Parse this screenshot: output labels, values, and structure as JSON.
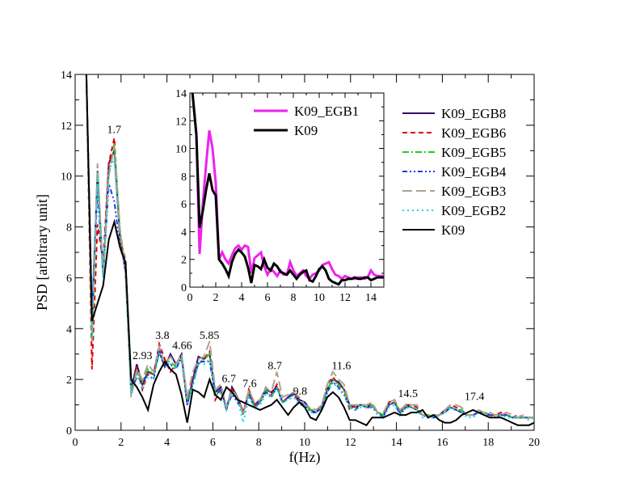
{
  "chart_data": [
    {
      "id": "main",
      "type": "line",
      "title": "",
      "xlabel": "f(Hz)",
      "ylabel": "PSD [arbitrary unit]",
      "xlim": [
        0,
        20
      ],
      "ylim": [
        0,
        14
      ],
      "xticks": [
        0,
        2,
        4,
        6,
        8,
        10,
        12,
        14,
        16,
        18,
        20
      ],
      "yticks": [
        0,
        2,
        4,
        6,
        8,
        10,
        12,
        14
      ],
      "legend_position": "right",
      "x": [
        0.488,
        0.732,
        0.977,
        1.221,
        1.465,
        1.709,
        1.953,
        2.197,
        2.441,
        2.686,
        2.93,
        3.174,
        3.418,
        3.662,
        3.906,
        4.15,
        4.395,
        4.639,
        4.883,
        5.127,
        5.371,
        5.615,
        5.859,
        6.104,
        6.348,
        6.592,
        6.836,
        7.08,
        7.324,
        7.568,
        7.813,
        8.057,
        8.301,
        8.545,
        8.789,
        9.033,
        9.277,
        9.521,
        9.766,
        10.01,
        10.254,
        10.498,
        10.742,
        10.986,
        11.23,
        11.475,
        11.719,
        11.963,
        12.207,
        12.451,
        12.695,
        12.939,
        13.184,
        13.428,
        13.672,
        13.916,
        14.16,
        14.404,
        14.648,
        14.893,
        15.137,
        15.381,
        15.625,
        15.869,
        16.113,
        16.357,
        16.602,
        16.846,
        17.09,
        17.334,
        17.578,
        17.822,
        18.066,
        18.311,
        18.555,
        18.799,
        19.043,
        19.287,
        19.531,
        19.775,
        20.0
      ],
      "series": [
        {
          "name": "K09_EGB8",
          "color": "#3b0a6e",
          "dash": "solid",
          "values": [
            14,
            4.3,
            10.2,
            6.0,
            10.5,
            11.0,
            7.6,
            6.2,
            1.6,
            2.6,
            1.8,
            2.3,
            2.2,
            3.1,
            2.5,
            3.0,
            2.6,
            3.0,
            1.0,
            2.0,
            2.9,
            2.8,
            3.0,
            1.5,
            1.7,
            0.8,
            1.7,
            1.3,
            0.7,
            1.5,
            1.0,
            1.2,
            1.6,
            1.5,
            1.7,
            1.1,
            1.3,
            1.5,
            1.2,
            1.1,
            0.8,
            0.7,
            0.9,
            1.6,
            2.0,
            1.9,
            1.6,
            1.0,
            0.9,
            1.0,
            0.9,
            1.0,
            0.7,
            0.6,
            1.0,
            1.1,
            0.7,
            1.0,
            0.9,
            0.8,
            0.6,
            0.6,
            0.5,
            0.6,
            0.8,
            0.9,
            0.8,
            0.7,
            0.6,
            0.6,
            0.7,
            0.7,
            0.6,
            0.6,
            0.6,
            0.6,
            0.5,
            0.5,
            0.5,
            0.5,
            0.5
          ]
        },
        {
          "name": "K09_EGB6",
          "color": "#e00000",
          "dash": "6,4",
          "values": [
            14,
            2.4,
            8.1,
            6.6,
            10.5,
            11.5,
            7.5,
            6.7,
            1.5,
            2.5,
            1.6,
            2.3,
            2.2,
            3.4,
            2.8,
            2.3,
            2.6,
            2.9,
            1.1,
            2.0,
            2.6,
            2.8,
            3.1,
            1.2,
            1.6,
            0.9,
            1.6,
            1.2,
            0.7,
            1.6,
            1.0,
            1.2,
            1.5,
            1.4,
            1.8,
            1.1,
            1.3,
            1.4,
            1.1,
            1.0,
            0.8,
            0.8,
            0.9,
            1.8,
            2.1,
            1.8,
            1.6,
            0.8,
            1.0,
            1.0,
            1.0,
            1.0,
            0.7,
            0.6,
            1.1,
            1.2,
            0.7,
            1.0,
            1.0,
            0.9,
            0.6,
            0.6,
            0.5,
            0.6,
            0.8,
            1.0,
            0.9,
            0.8,
            0.6,
            0.6,
            0.7,
            0.7,
            0.6,
            0.6,
            0.7,
            0.6,
            0.5,
            0.6,
            0.5,
            0.5,
            0.5
          ]
        },
        {
          "name": "K09_EGB5",
          "color": "#22cc22",
          "dash": "8,3,2,3",
          "values": [
            14,
            3.5,
            10.0,
            6.3,
            10.0,
            11.3,
            7.9,
            6.4,
            1.5,
            2.3,
            1.9,
            2.4,
            2.2,
            3.0,
            2.7,
            2.7,
            2.5,
            2.8,
            1.2,
            1.8,
            2.6,
            2.8,
            3.0,
            1.4,
            1.5,
            0.9,
            1.5,
            1.2,
            0.6,
            1.5,
            0.9,
            1.1,
            1.6,
            1.3,
            1.7,
            1.1,
            1.2,
            1.5,
            1.1,
            1.0,
            0.8,
            0.8,
            0.8,
            1.6,
            2.0,
            1.8,
            1.6,
            0.9,
            0.9,
            1.0,
            0.9,
            1.0,
            0.7,
            0.6,
            1.0,
            1.1,
            0.7,
            1.0,
            0.9,
            0.8,
            0.6,
            0.6,
            0.5,
            0.6,
            0.7,
            0.9,
            0.8,
            0.8,
            0.6,
            0.6,
            0.7,
            0.7,
            0.6,
            0.6,
            0.6,
            0.6,
            0.5,
            0.5,
            0.5,
            0.5,
            0.5
          ]
        },
        {
          "name": "K09_EGB4",
          "color": "#1a3aee",
          "dash": "6,3,2,3,2,3",
          "values": [
            14,
            4.5,
            9.5,
            6.1,
            9.7,
            9.0,
            7.2,
            6.5,
            1.5,
            2.1,
            1.9,
            2.2,
            2.0,
            3.2,
            2.6,
            2.6,
            2.4,
            2.9,
            1.0,
            1.9,
            2.7,
            2.7,
            2.7,
            1.4,
            1.6,
            0.9,
            1.4,
            1.1,
            0.7,
            1.4,
            0.9,
            1.1,
            1.5,
            1.3,
            1.7,
            1.1,
            1.3,
            1.4,
            1.1,
            1.0,
            0.7,
            0.7,
            0.9,
            1.5,
            1.9,
            1.7,
            1.4,
            0.9,
            0.8,
            1.0,
            0.9,
            0.9,
            0.7,
            0.5,
            1.0,
            1.1,
            0.6,
            0.9,
            0.9,
            0.8,
            0.6,
            0.5,
            0.5,
            0.6,
            0.7,
            0.9,
            0.8,
            0.7,
            0.6,
            0.6,
            0.7,
            0.6,
            0.6,
            0.5,
            0.6,
            0.6,
            0.5,
            0.5,
            0.5,
            0.5,
            0.5
          ]
        },
        {
          "name": "K09_EGB3",
          "color": "#b0a090",
          "dash": "12,5",
          "values": [
            14,
            3.5,
            10.5,
            6.0,
            10.0,
            11.2,
            7.8,
            6.4,
            1.3,
            2.4,
            2.0,
            2.6,
            2.3,
            3.3,
            2.6,
            2.9,
            2.6,
            3.0,
            1.3,
            2.3,
            2.8,
            2.9,
            3.5,
            1.6,
            1.8,
            0.9,
            1.6,
            1.3,
            0.6,
            1.6,
            1.1,
            1.2,
            1.7,
            1.5,
            2.3,
            1.3,
            1.4,
            1.5,
            1.3,
            1.0,
            0.9,
            0.8,
            1.0,
            1.8,
            2.3,
            2.0,
            1.8,
            1.0,
            1.0,
            1.0,
            1.0,
            1.1,
            0.7,
            0.7,
            1.1,
            1.2,
            0.8,
            1.0,
            1.0,
            1.0,
            0.6,
            0.6,
            0.6,
            0.6,
            0.8,
            1.0,
            1.0,
            0.9,
            0.6,
            0.6,
            0.8,
            0.7,
            0.7,
            0.6,
            0.6,
            0.7,
            0.6,
            0.5,
            0.6,
            0.5,
            0.5
          ]
        },
        {
          "name": "K09_EGB2",
          "color": "#19d6e8",
          "dash": "2,4",
          "values": [
            14,
            3.6,
            10.1,
            6.0,
            10.2,
            10.7,
            7.3,
            6.3,
            1.4,
            2.2,
            1.6,
            2.1,
            2.0,
            3.1,
            2.5,
            2.6,
            2.4,
            2.8,
            1.0,
            1.7,
            2.7,
            2.6,
            2.8,
            1.4,
            1.5,
            0.8,
            1.5,
            1.2,
            0.3,
            1.3,
            0.9,
            1.0,
            1.4,
            1.3,
            1.7,
            1.1,
            1.2,
            1.3,
            1.0,
            1.0,
            0.7,
            0.7,
            0.9,
            1.5,
            1.9,
            1.6,
            1.4,
            0.9,
            0.8,
            0.9,
            0.9,
            0.9,
            0.6,
            0.5,
            0.9,
            1.0,
            0.6,
            0.9,
            0.9,
            0.8,
            0.5,
            0.5,
            0.5,
            0.6,
            0.7,
            0.9,
            0.8,
            0.7,
            0.5,
            0.5,
            0.7,
            0.6,
            0.5,
            0.5,
            0.6,
            0.5,
            0.5,
            0.5,
            0.5,
            0.4,
            0.5
          ]
        },
        {
          "name": "K09",
          "color": "#000000",
          "dash": "solid",
          "values": [
            14,
            4.3,
            5.0,
            5.7,
            7.5,
            8.2,
            7.2,
            6.6,
            2.0,
            1.7,
            1.3,
            0.8,
            1.8,
            2.3,
            2.7,
            2.4,
            2.2,
            1.4,
            0.3,
            1.6,
            1.5,
            1.3,
            2.0,
            1.4,
            1.2,
            1.7,
            1.5,
            1.2,
            1.1,
            1.0,
            0.9,
            0.8,
            0.9,
            1.0,
            1.2,
            0.9,
            0.6,
            0.9,
            1.1,
            0.9,
            0.5,
            0.4,
            0.8,
            1.3,
            1.5,
            1.3,
            0.9,
            0.4,
            0.4,
            0.3,
            0.2,
            0.5,
            0.5,
            0.5,
            0.6,
            0.7,
            0.6,
            0.6,
            0.7,
            0.7,
            0.8,
            0.5,
            0.6,
            0.4,
            0.3,
            0.3,
            0.4,
            0.6,
            0.7,
            0.8,
            0.7,
            0.6,
            0.5,
            0.5,
            0.5,
            0.4,
            0.3,
            0.2,
            0.2,
            0.2,
            0.3
          ]
        }
      ],
      "annotations": [
        {
          "text": "1.7",
          "x": 1.7,
          "y": 11.7
        },
        {
          "text": "2.93",
          "x": 2.93,
          "y": 2.8
        },
        {
          "text": "3.8",
          "x": 3.8,
          "y": 3.6
        },
        {
          "text": "4.66",
          "x": 4.66,
          "y": 3.2
        },
        {
          "text": "5.85",
          "x": 5.85,
          "y": 3.6
        },
        {
          "text": "6.7",
          "x": 6.7,
          "y": 1.9
        },
        {
          "text": "7.6",
          "x": 7.6,
          "y": 1.7
        },
        {
          "text": "8.7",
          "x": 8.7,
          "y": 2.4
        },
        {
          "text": "9.8",
          "x": 9.8,
          "y": 1.4
        },
        {
          "text": "11.6",
          "x": 11.6,
          "y": 2.4
        },
        {
          "text": "14.5",
          "x": 14.5,
          "y": 1.3
        },
        {
          "text": "17.4",
          "x": 17.4,
          "y": 1.2
        }
      ]
    },
    {
      "id": "inset",
      "type": "line",
      "title": "",
      "xlabel": "",
      "ylabel": "",
      "xlim": [
        0,
        15
      ],
      "ylim": [
        0,
        14
      ],
      "xticks": [
        0,
        2,
        4,
        6,
        8,
        10,
        12,
        14
      ],
      "yticks": [
        0,
        2,
        4,
        6,
        8,
        10,
        12,
        14
      ],
      "legend_position": "top-right",
      "x": [
        0.2,
        0.5,
        0.75,
        1.0,
        1.25,
        1.5,
        1.75,
        2.0,
        2.25,
        2.5,
        2.75,
        3.0,
        3.25,
        3.5,
        3.75,
        4.0,
        4.25,
        4.5,
        4.75,
        5.0,
        5.25,
        5.5,
        5.75,
        6.0,
        6.25,
        6.5,
        6.75,
        7.0,
        7.25,
        7.5,
        7.75,
        8.0,
        8.25,
        8.5,
        8.75,
        9.0,
        9.25,
        9.5,
        9.75,
        10.0,
        10.25,
        10.5,
        10.75,
        11.0,
        11.25,
        11.5,
        11.75,
        12.0,
        12.25,
        12.5,
        12.75,
        13.0,
        13.25,
        13.5,
        13.75,
        14.0,
        14.25,
        14.5,
        14.75,
        15.0
      ],
      "series": [
        {
          "name": "K09_EGB1",
          "color": "#ee22ee",
          "dash": "solid",
          "width": 3,
          "values": [
            14,
            11,
            2.4,
            6.0,
            8.8,
            11.3,
            10.0,
            7.5,
            2.0,
            2.5,
            2.0,
            1.7,
            2.3,
            2.8,
            3.0,
            2.7,
            3.0,
            2.9,
            1.0,
            2.1,
            2.3,
            2.5,
            1.5,
            0.9,
            1.3,
            1.1,
            0.8,
            1.2,
            0.9,
            0.9,
            1.8,
            1.2,
            0.8,
            1.0,
            1.2,
            0.8,
            0.6,
            0.9,
            1.0,
            1.2,
            1.6,
            1.7,
            1.8,
            1.3,
            0.9,
            0.8,
            0.6,
            0.8,
            0.7,
            0.6,
            0.6,
            0.7,
            0.7,
            0.6,
            0.7,
            1.2,
            0.9,
            0.8,
            0.8,
            0.8
          ]
        },
        {
          "name": "K09",
          "color": "#000000",
          "dash": "solid",
          "width": 3,
          "values": [
            14,
            11,
            4.3,
            5.5,
            7.0,
            8.2,
            7.0,
            6.6,
            2.0,
            1.7,
            1.3,
            0.8,
            1.8,
            2.4,
            2.7,
            2.5,
            2.2,
            1.4,
            0.3,
            1.6,
            1.5,
            1.3,
            2.0,
            1.4,
            1.2,
            1.7,
            1.5,
            1.1,
            1.0,
            0.9,
            1.2,
            0.9,
            0.6,
            0.9,
            1.1,
            1.2,
            0.5,
            0.4,
            0.8,
            1.3,
            1.5,
            1.2,
            0.6,
            0.4,
            0.3,
            0.2,
            0.5,
            0.5,
            0.6,
            0.6,
            0.7,
            0.6,
            0.6,
            0.7,
            0.7,
            0.5,
            0.6,
            0.7,
            0.7,
            0.7
          ]
        }
      ]
    }
  ]
}
